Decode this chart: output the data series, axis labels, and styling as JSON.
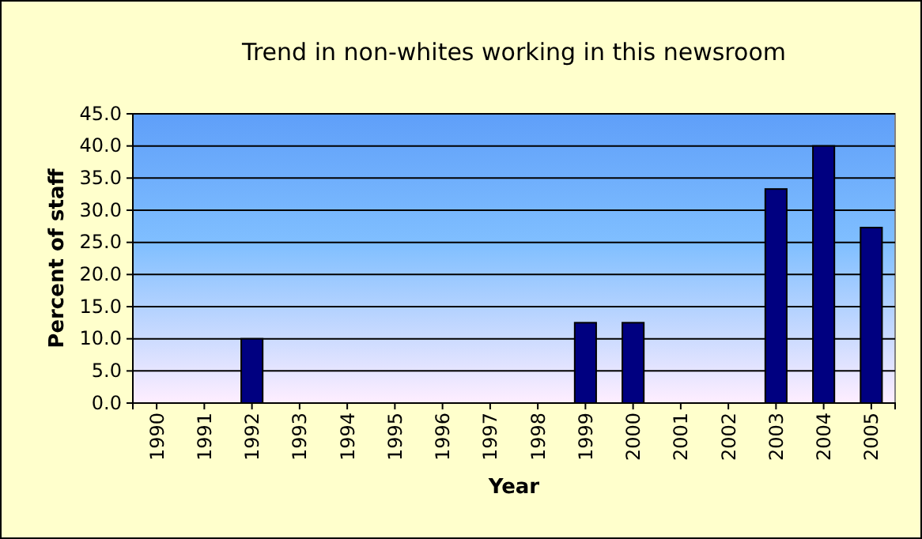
{
  "chart_data": {
    "type": "bar",
    "title": "Trend in non-whites working in this newsroom",
    "xlabel": "Year",
    "ylabel": "Percent of staff",
    "categories": [
      "1990",
      "1991",
      "1992",
      "1993",
      "1994",
      "1995",
      "1996",
      "1997",
      "1998",
      "1999",
      "2000",
      "2001",
      "2002",
      "2003",
      "2004",
      "2005"
    ],
    "values": [
      0,
      0,
      10,
      0,
      0,
      0,
      0,
      0,
      0,
      12.5,
      12.5,
      0,
      0,
      33.3,
      40,
      27.3
    ],
    "color": "#000080",
    "ylim": [
      0,
      45
    ],
    "yticks": [
      {
        "value": 0,
        "label": "0.0"
      },
      {
        "value": 5,
        "label": "5.0"
      },
      {
        "value": 10,
        "label": "10.0"
      },
      {
        "value": 15,
        "label": "15.0"
      },
      {
        "value": 20,
        "label": "20.0"
      },
      {
        "value": 25,
        "label": "25.0"
      },
      {
        "value": 30,
        "label": "30.0"
      },
      {
        "value": 35,
        "label": "35.0"
      },
      {
        "value": 40,
        "label": "40.0"
      },
      {
        "value": 45,
        "label": "45.0"
      }
    ],
    "grid": "y"
  }
}
